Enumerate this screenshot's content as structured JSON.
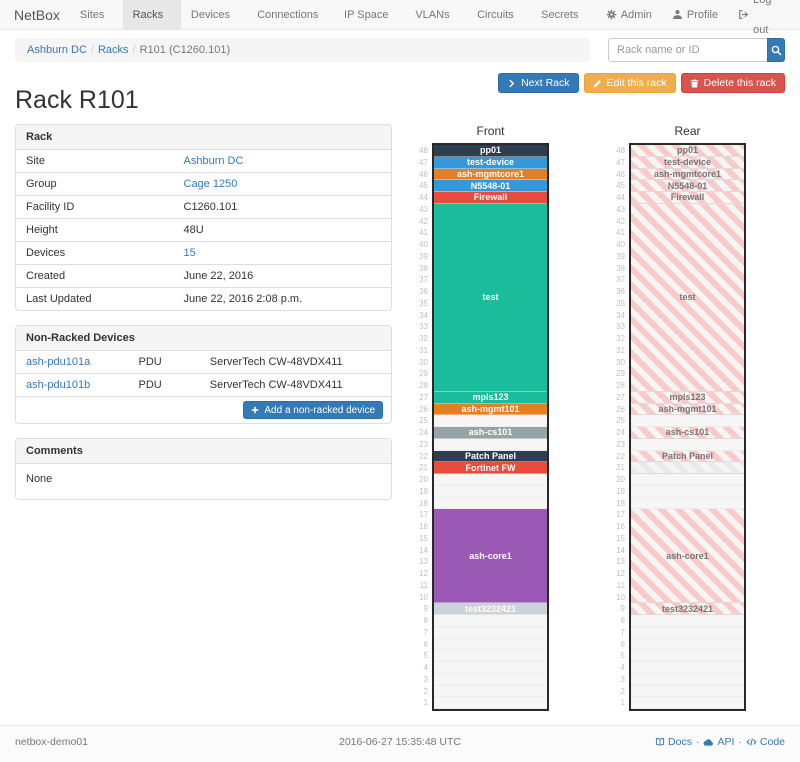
{
  "navbar": {
    "brand": "NetBox",
    "items": [
      {
        "label": "Sites"
      },
      {
        "label": "Racks",
        "active": true
      },
      {
        "label": "Devices"
      },
      {
        "label": "Connections"
      },
      {
        "label": "IP Space"
      },
      {
        "label": "VLANs"
      },
      {
        "label": "Circuits"
      },
      {
        "label": "Secrets"
      }
    ],
    "right_items": [
      {
        "label": "Admin",
        "icon": "gear-icon"
      },
      {
        "label": "Profile",
        "icon": "user-icon"
      },
      {
        "label": "Log out",
        "icon": "logout-icon"
      }
    ]
  },
  "breadcrumb": {
    "items": [
      {
        "label": "Ashburn DC",
        "link": true
      },
      {
        "label": "Racks",
        "link": true
      },
      {
        "label": "R101 (C1260.101)",
        "link": false
      }
    ]
  },
  "search": {
    "placeholder": "Rack name or ID",
    "icon": "search-icon"
  },
  "actions": {
    "next": "Next Rack",
    "edit": "Edit this rack",
    "delete": "Delete this rack"
  },
  "page_title": "Rack R101",
  "rack_panel": {
    "title": "Rack",
    "rows": [
      {
        "label": "Site",
        "value": "Ashburn DC",
        "link": true
      },
      {
        "label": "Group",
        "value": "Cage 1250",
        "link": true
      },
      {
        "label": "Facility ID",
        "value": "C1260.101"
      },
      {
        "label": "Height",
        "value": "48U"
      },
      {
        "label": "Devices",
        "value": "15",
        "link": true
      },
      {
        "label": "Created",
        "value": "June 22, 2016"
      },
      {
        "label": "Last Updated",
        "value": "June 22, 2016 2:08 p.m."
      }
    ]
  },
  "non_racked": {
    "title": "Non-Racked Devices",
    "rows": [
      {
        "name": "ash-pdu101a",
        "type": "PDU",
        "model": "ServerTech CW-48VDX411"
      },
      {
        "name": "ash-pdu101b",
        "type": "PDU",
        "model": "ServerTech CW-48VDX411"
      }
    ],
    "add_button": "Add a non-racked device"
  },
  "comments": {
    "title": "Comments",
    "body": "None"
  },
  "colors": {
    "accent": "#337ab7",
    "devices": {
      "dark": "#2c3e50",
      "blue": "#3498db",
      "orange": "#e67e22",
      "red": "#e74c3c",
      "teal": "#1abc9c",
      "gray": "#95a5a6",
      "purple": "#9b59b6",
      "silver": "#ccd2d6"
    },
    "stripes": {
      "pink": "#f9caca",
      "muted": "#e9e9e9",
      "base": "#f7f4f4"
    }
  },
  "elevations": {
    "total_units": 48,
    "front": {
      "title": "Front",
      "segments": [
        {
          "label": "pp01",
          "u": 1,
          "style": "dark"
        },
        {
          "label": "test-device",
          "u": 1,
          "style": "blue"
        },
        {
          "label": "ash-mgmtcore1",
          "u": 1,
          "style": "orange"
        },
        {
          "label": "N5548-01",
          "u": 1,
          "style": "blue"
        },
        {
          "label": "Firewall",
          "u": 1,
          "style": "red"
        },
        {
          "label": "test",
          "u": 16,
          "style": "teal"
        },
        {
          "label": "mpls123",
          "u": 1,
          "style": "teal"
        },
        {
          "label": "ash-mgmt101",
          "u": 1,
          "style": "orange"
        },
        {
          "u": 1,
          "style": "empty"
        },
        {
          "label": "ash-cs101",
          "u": 1,
          "style": "gray"
        },
        {
          "u": 1,
          "style": "empty"
        },
        {
          "label": "Patch Panel",
          "u": 1,
          "style": "dark"
        },
        {
          "label": "Fortinet FW",
          "u": 1,
          "style": "red"
        },
        {
          "u": 3,
          "style": "empty"
        },
        {
          "label": "ash-core1",
          "u": 8,
          "style": "purple"
        },
        {
          "label": "test3232421",
          "u": 1,
          "style": "silver"
        },
        {
          "u": 8,
          "style": "empty"
        }
      ]
    },
    "rear": {
      "title": "Rear",
      "segments": [
        {
          "label": "pp01",
          "u": 1,
          "style": "striped"
        },
        {
          "label": "test-device",
          "u": 1,
          "style": "striped"
        },
        {
          "label": "ash-mgmtcore1",
          "u": 1,
          "style": "striped"
        },
        {
          "label": "N5548-01",
          "u": 1,
          "style": "striped"
        },
        {
          "label": "Firewall",
          "u": 1,
          "style": "striped"
        },
        {
          "label": "test",
          "u": 16,
          "style": "striped"
        },
        {
          "label": "mpls123",
          "u": 1,
          "style": "striped"
        },
        {
          "label": "ash-mgmt101",
          "u": 1,
          "style": "striped"
        },
        {
          "u": 1,
          "style": "empty"
        },
        {
          "label": "ash-cs101",
          "u": 1,
          "style": "striped"
        },
        {
          "u": 1,
          "style": "empty"
        },
        {
          "label": "Patch Panel",
          "u": 1,
          "style": "striped"
        },
        {
          "u": 1,
          "style": "striped-muted"
        },
        {
          "u": 3,
          "style": "empty"
        },
        {
          "label": "ash-core1",
          "u": 8,
          "style": "striped"
        },
        {
          "label": "test3232421",
          "u": 1,
          "style": "striped"
        },
        {
          "u": 8,
          "style": "empty"
        }
      ]
    }
  },
  "footer": {
    "hostname": "netbox-demo01",
    "timestamp": "2016-06-27 15:35:48 UTC",
    "links": [
      {
        "label": "Docs",
        "icon": "book-icon"
      },
      {
        "label": "API",
        "icon": "cloud-icon"
      },
      {
        "label": "Code",
        "icon": "code-icon"
      }
    ]
  }
}
